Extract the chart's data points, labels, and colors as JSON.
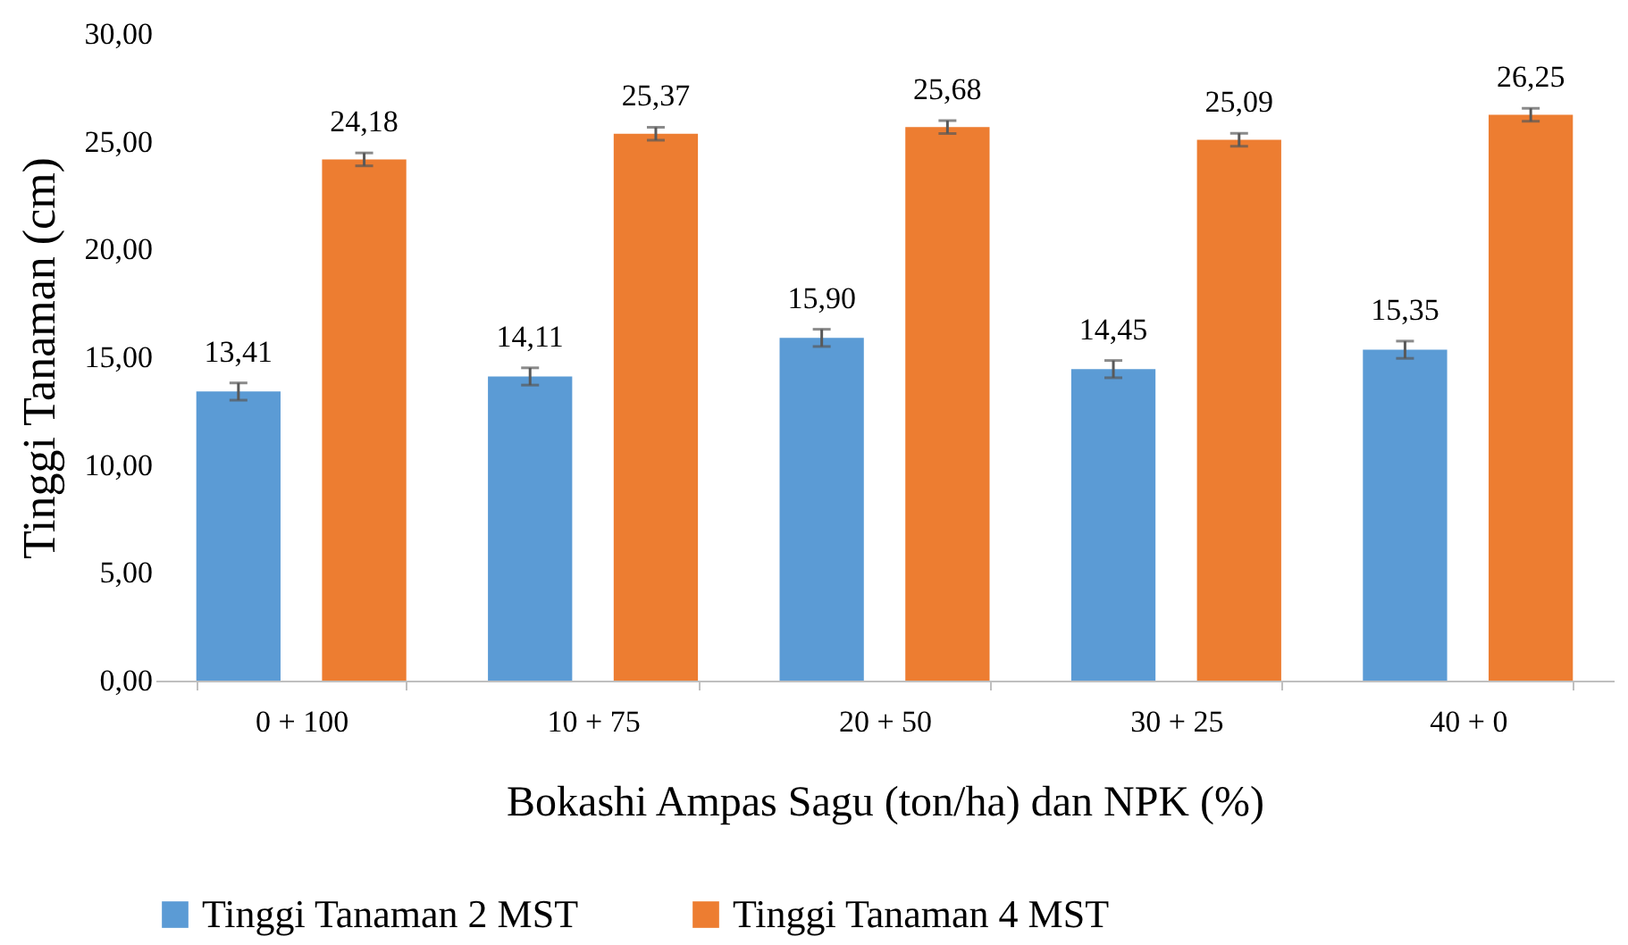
{
  "chart_data": {
    "type": "bar",
    "xlabel": "Bokashi Ampas Sagu (ton/ha) dan NPK (%)",
    "ylabel": "Tinggi Tanaman (cm)",
    "categories": [
      "0 + 100",
      "10 + 75",
      "20 + 50",
      "30 + 25",
      "40 + 0"
    ],
    "ylim": [
      0,
      30
    ],
    "yticks": [
      {
        "value": 0,
        "label": "0,00"
      },
      {
        "value": 5,
        "label": "5,00"
      },
      {
        "value": 10,
        "label": "10,00"
      },
      {
        "value": 15,
        "label": "15,00"
      },
      {
        "value": 20,
        "label": "20,00"
      },
      {
        "value": 25,
        "label": "25,00"
      },
      {
        "value": 30,
        "label": "30,00"
      }
    ],
    "series": [
      {
        "name": "Tinggi Tanaman 2 MST",
        "color": "#5b9bd5",
        "values": [
          13.41,
          14.11,
          15.9,
          14.45,
          15.35
        ],
        "errors": [
          0.4,
          0.4,
          0.4,
          0.4,
          0.4
        ],
        "value_labels": [
          "13,41",
          "14,11",
          "15,90",
          "14,45",
          "15,35"
        ]
      },
      {
        "name": "Tinggi Tanaman 4 MST",
        "color": "#ed7d31",
        "values": [
          24.18,
          25.37,
          25.68,
          25.09,
          26.25
        ],
        "errors": [
          0.3,
          0.3,
          0.3,
          0.3,
          0.3
        ],
        "value_labels": [
          "24,18",
          "25,37",
          "25,68",
          "25,09",
          "26,25"
        ]
      }
    ],
    "grid": false,
    "legend": "bottom"
  }
}
